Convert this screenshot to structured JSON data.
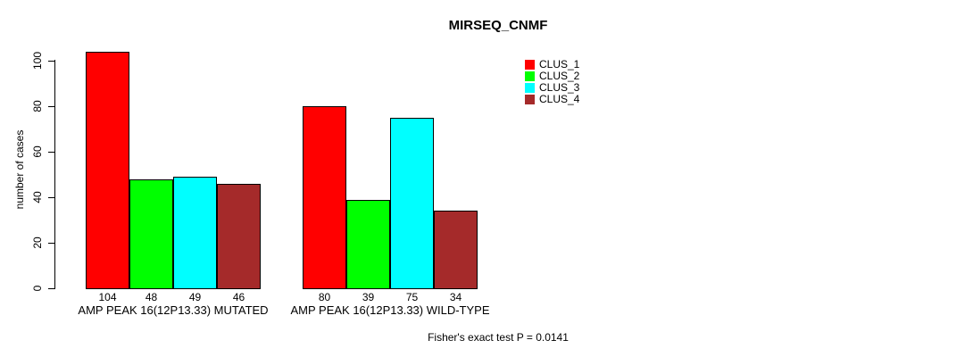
{
  "chart_data": {
    "type": "bar",
    "title": "MIRSEQ_CNMF",
    "ylabel": "number of cases",
    "xlabel": "",
    "ylim": [
      0,
      100
    ],
    "yticks": [
      0,
      20,
      40,
      60,
      80,
      100
    ],
    "grid": false,
    "legend_position": "top-right",
    "categories": [
      "AMP PEAK 16(12P13.33) MUTATED",
      "AMP PEAK 16(12P13.33) WILD-TYPE"
    ],
    "series": [
      {
        "name": "CLUS_1",
        "color": "#FF0000",
        "values": [
          104,
          80
        ]
      },
      {
        "name": "CLUS_2",
        "color": "#00FF00",
        "values": [
          48,
          39
        ]
      },
      {
        "name": "CLUS_3",
        "color": "#00FFFF",
        "values": [
          49,
          75
        ]
      },
      {
        "name": "CLUS_4",
        "color": "#A52A2A",
        "values": [
          46,
          34
        ]
      }
    ],
    "bar_value_labels": [
      [
        104,
        48,
        49,
        46
      ],
      [
        80,
        39,
        75,
        34
      ]
    ],
    "annotation": "Fisher's exact test P = 0.0141",
    "axis_color": "#000000",
    "background_color": "#FFFFFF"
  }
}
